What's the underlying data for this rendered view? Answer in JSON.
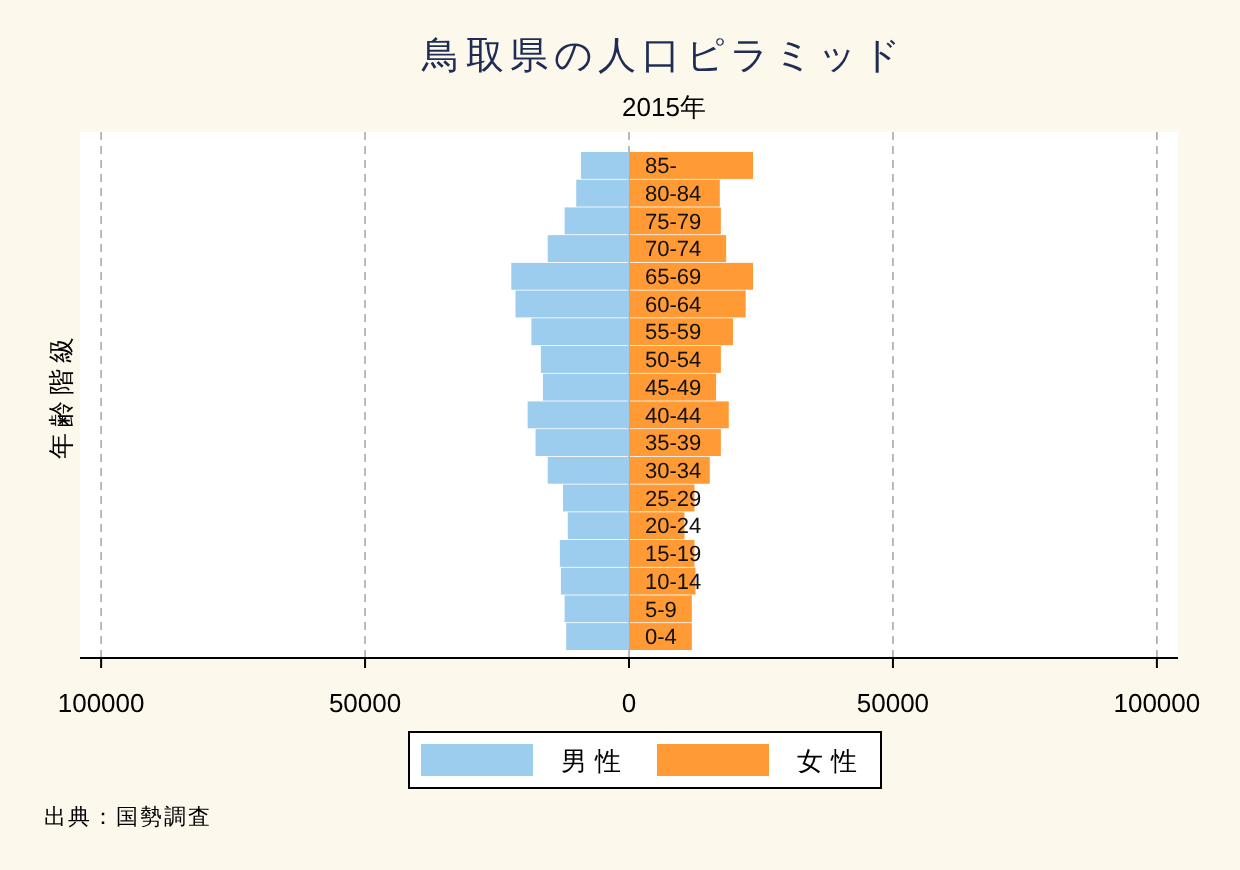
{
  "chart_data": {
    "type": "bar",
    "orientation": "horizontal",
    "stacked": true,
    "title": "鳥取県の人口ピラミッド",
    "subtitle": "2015年",
    "ylabel": "年齢階級",
    "annotations": [
      "出典：国勢調査"
    ],
    "categories": [
      "85-",
      "80-84",
      "75-79",
      "70-74",
      "65-69",
      "60-64",
      "55-59",
      "50-54",
      "45-49",
      "40-44",
      "35-39",
      "30-34",
      "25-29",
      "20-24",
      "15-19",
      "10-14",
      "5-9",
      "0-4"
    ],
    "series": [
      {
        "name": "男性",
        "color": "#9dcdee",
        "values": [
          -9100,
          -10000,
          -12200,
          -15400,
          -22300,
          -21500,
          -18500,
          -16700,
          -16300,
          -19200,
          -17700,
          -15400,
          -12500,
          -11600,
          -13100,
          -12900,
          -12200,
          -11900
        ]
      },
      {
        "name": "女性",
        "color": "#ff9a35",
        "values": [
          23500,
          17200,
          17400,
          18400,
          23500,
          22100,
          19700,
          17400,
          16500,
          18900,
          17400,
          15300,
          12400,
          10500,
          12400,
          12600,
          11900,
          11900
        ]
      }
    ],
    "xlim": [
      -104000,
      104000
    ],
    "xticks": [
      {
        "value": -100000,
        "label": "100000"
      },
      {
        "value": -50000,
        "label": "50000"
      },
      0,
      50000,
      100000
    ],
    "grid": "x",
    "legend": "bottom"
  }
}
